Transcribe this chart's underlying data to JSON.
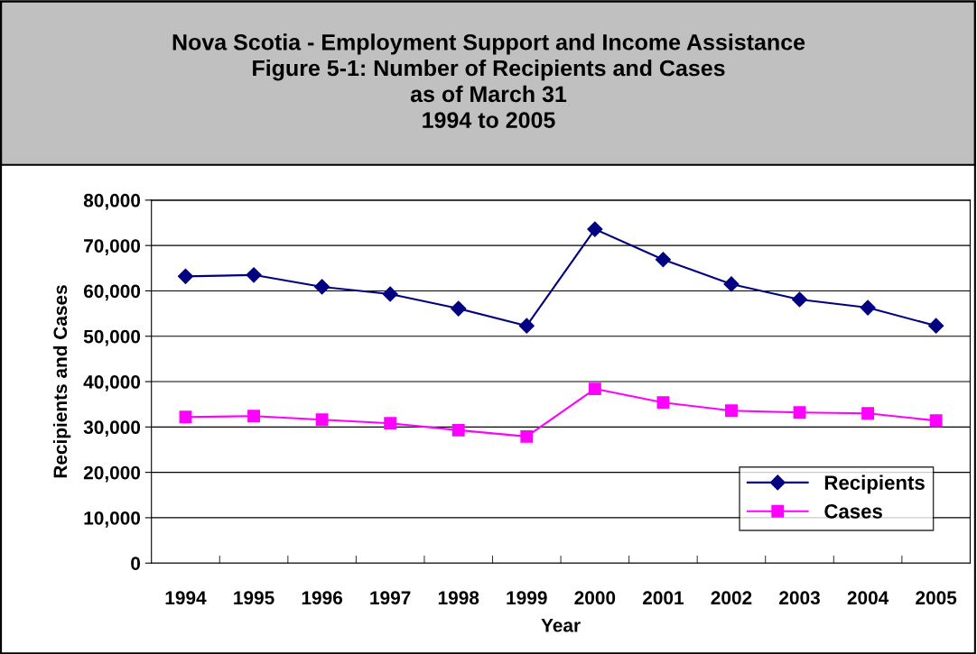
{
  "chart_data": {
    "type": "line",
    "title": "Nova Scotia - Employment Support and Income Assistance\nFigure 5-1: Number of Recipients and Cases\nas of March 31\n1994 to 2005",
    "xlabel": "Year",
    "ylabel": "Recipients and Cases",
    "categories": [
      "1994",
      "1995",
      "1996",
      "1997",
      "1998",
      "1999",
      "2000",
      "2001",
      "2002",
      "2003",
      "2004",
      "2005"
    ],
    "series": [
      {
        "name": "Recipients",
        "color": "#000080",
        "marker": "diamond",
        "values": [
          63200,
          63500,
          60900,
          59300,
          56100,
          52300,
          73600,
          66900,
          61500,
          58100,
          56300,
          52300
        ]
      },
      {
        "name": "Cases",
        "color": "#ff00ff",
        "marker": "square",
        "values": [
          32200,
          32400,
          31600,
          30800,
          29300,
          27900,
          38400,
          35400,
          33600,
          33200,
          33000,
          31400
        ]
      }
    ],
    "ylim": [
      0,
      80000
    ],
    "yticks": [
      {
        "value": 0,
        "label": "0"
      },
      {
        "value": 10000,
        "label": "10,000"
      },
      {
        "value": 20000,
        "label": "20,000"
      },
      {
        "value": 30000,
        "label": "30,000"
      },
      {
        "value": 40000,
        "label": "40,000"
      },
      {
        "value": 50000,
        "label": "50,000"
      },
      {
        "value": 60000,
        "label": "60,000"
      },
      {
        "value": 70000,
        "label": "70,000"
      },
      {
        "value": 80000,
        "label": "80,000"
      }
    ],
    "grid": "y",
    "legend": "bottom right",
    "line_style": "solid"
  }
}
